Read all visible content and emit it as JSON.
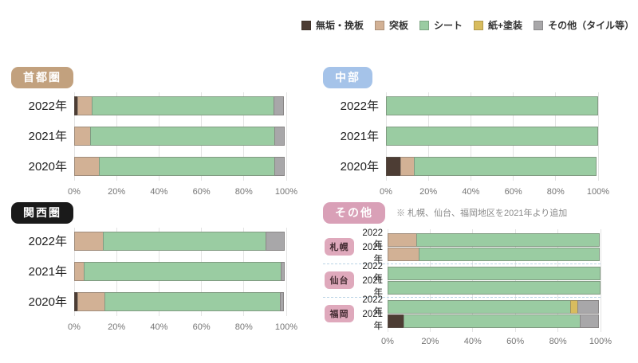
{
  "legend": {
    "items": [
      {
        "label": "無垢・挽板",
        "color": "#4d3d34"
      },
      {
        "label": "突板",
        "color": "#d2b195"
      },
      {
        "label": "シート",
        "color": "#9acca2"
      },
      {
        "label": "紙+塗装",
        "color": "#d8bc5e"
      },
      {
        "label": "その他（タイル等）",
        "color": "#a8a7a9"
      }
    ]
  },
  "axis_ticks": [
    "0%",
    "20%",
    "40%",
    "60%",
    "80%",
    "100%"
  ],
  "chart_data": [
    {
      "type": "bar",
      "stacked": true,
      "orientation": "horizontal",
      "title": "首都圏",
      "badge_color": "#c2a17e",
      "badge_text_color": "#ffffff",
      "categories": [
        "2022年",
        "2021年",
        "2020年"
      ],
      "series": [
        {
          "name": "無垢・挽板",
          "values": [
            2,
            0,
            0
          ]
        },
        {
          "name": "突板",
          "values": [
            7,
            8,
            12
          ]
        },
        {
          "name": "シート",
          "values": [
            86,
            87,
            83
          ]
        },
        {
          "name": "紙+塗装",
          "values": [
            0,
            0,
            0
          ]
        },
        {
          "name": "その他（タイル等）",
          "values": [
            5,
            5,
            5
          ]
        }
      ],
      "xlim": [
        0,
        100
      ],
      "x_ticks": [
        "0%",
        "20%",
        "40%",
        "60%",
        "80%",
        "100%"
      ]
    },
    {
      "type": "bar",
      "stacked": true,
      "orientation": "horizontal",
      "title": "中部",
      "badge_color": "#a5c3e9",
      "badge_text_color": "#ffffff",
      "categories": [
        "2022年",
        "2021年",
        "2020年"
      ],
      "series": [
        {
          "name": "無垢・挽板",
          "values": [
            0,
            0,
            7
          ]
        },
        {
          "name": "突板",
          "values": [
            0,
            0,
            7
          ]
        },
        {
          "name": "シート",
          "values": [
            100,
            100,
            86
          ]
        },
        {
          "name": "紙+塗装",
          "values": [
            0,
            0,
            0
          ]
        },
        {
          "name": "その他（タイル等）",
          "values": [
            0,
            0,
            0
          ]
        }
      ],
      "xlim": [
        0,
        100
      ],
      "x_ticks": [
        "0%",
        "20%",
        "40%",
        "60%",
        "80%",
        "100%"
      ]
    },
    {
      "type": "bar",
      "stacked": true,
      "orientation": "horizontal",
      "title": "関西圏",
      "badge_color": "#1a1a1a",
      "badge_text_color": "#ffffff",
      "categories": [
        "2022年",
        "2021年",
        "2020年"
      ],
      "series": [
        {
          "name": "無垢・挽板",
          "values": [
            0,
            0,
            2
          ]
        },
        {
          "name": "突板",
          "values": [
            14,
            5,
            13
          ]
        },
        {
          "name": "シート",
          "values": [
            77,
            93,
            83
          ]
        },
        {
          "name": "紙+塗装",
          "values": [
            0,
            0,
            0
          ]
        },
        {
          "name": "その他（タイル等）",
          "values": [
            9,
            2,
            2
          ]
        }
      ],
      "xlim": [
        0,
        100
      ],
      "x_ticks": [
        "0%",
        "20%",
        "40%",
        "60%",
        "80%",
        "100%"
      ]
    },
    {
      "type": "bar",
      "stacked": true,
      "orientation": "horizontal",
      "title": "その他",
      "badge_color": "#d9a0b7",
      "badge_text_color": "#ffffff",
      "note": "※ 札幌、仙台、福岡地区を2021年より追加",
      "group_badge_color": "#dfa9bc",
      "xlim": [
        0,
        100
      ],
      "x_ticks": [
        "0%",
        "20%",
        "40%",
        "60%",
        "80%",
        "100%"
      ],
      "groups": [
        {
          "name": "札幌",
          "categories": [
            "2022年",
            "2021年"
          ],
          "series": [
            {
              "name": "無垢・挽板",
              "values": [
                0,
                0
              ]
            },
            {
              "name": "突板",
              "values": [
                14,
                15
              ]
            },
            {
              "name": "シート",
              "values": [
                86,
                85
              ]
            },
            {
              "name": "紙+塗装",
              "values": [
                0,
                0
              ]
            },
            {
              "name": "その他（タイル等）",
              "values": [
                0,
                0
              ]
            }
          ]
        },
        {
          "name": "仙台",
          "categories": [
            "2022年",
            "2021年"
          ],
          "series": [
            {
              "name": "無垢・挽板",
              "values": [
                0,
                0
              ]
            },
            {
              "name": "突板",
              "values": [
                0,
                0
              ]
            },
            {
              "name": "シート",
              "values": [
                100,
                100
              ]
            },
            {
              "name": "紙+塗装",
              "values": [
                0,
                0
              ]
            },
            {
              "name": "その他（タイル等）",
              "values": [
                0,
                0
              ]
            }
          ]
        },
        {
          "name": "福岡",
          "categories": [
            "2022年",
            "2021年"
          ],
          "series": [
            {
              "name": "無垢・挽板",
              "values": [
                0,
                8
              ]
            },
            {
              "name": "突板",
              "values": [
                0,
                0
              ]
            },
            {
              "name": "シート",
              "values": [
                86,
                83
              ]
            },
            {
              "name": "紙+塗装",
              "values": [
                4,
                0
              ]
            },
            {
              "name": "その他（タイル等）",
              "values": [
                10,
                9
              ]
            }
          ]
        }
      ]
    }
  ]
}
